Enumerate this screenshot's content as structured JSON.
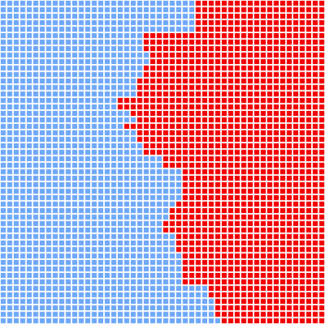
{
  "board": {
    "columns": 50,
    "rows": 50,
    "colors": {
      "blue": "#6fa8f8",
      "red": "#f20000",
      "background": "#ffffff"
    },
    "frontier": [
      30,
      30,
      30,
      30,
      30,
      22,
      22,
      22,
      23,
      23,
      22,
      22,
      21,
      21,
      21,
      18,
      18,
      20,
      21,
      19,
      21,
      21,
      22,
      22,
      25,
      25,
      28,
      28,
      28,
      28,
      28,
      27,
      26,
      26,
      25,
      25,
      27,
      27,
      27,
      28,
      28,
      28,
      28,
      28,
      32,
      32,
      33,
      33,
      33,
      34,
      34
    ]
  }
}
